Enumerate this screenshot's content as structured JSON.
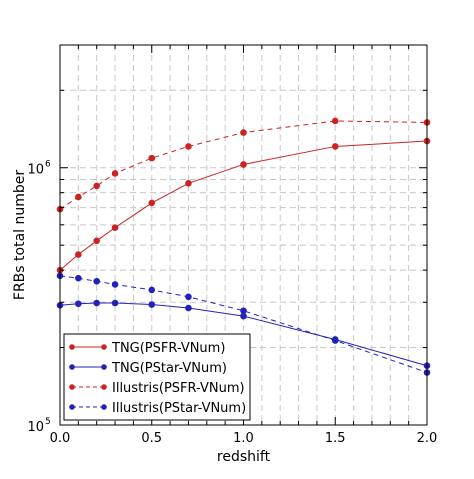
{
  "chart_data": {
    "type": "line",
    "xlabel": "redshift",
    "ylabel": "FRBs total number",
    "x_scale": "linear",
    "y_scale": "log",
    "xlim": [
      0.0,
      2.0
    ],
    "ylim": [
      100000,
      3000000
    ],
    "x_ticks": [
      0.0,
      0.5,
      1.0,
      1.5,
      2.0
    ],
    "x_tick_labels": [
      "0.0",
      "0.5",
      "1.0",
      "1.5",
      "2.0"
    ],
    "y_tick_labels": [
      {
        "value": 100000,
        "base": "10",
        "exp": "5"
      },
      {
        "value": 1000000,
        "base": "10",
        "exp": "6"
      }
    ],
    "grid": true,
    "legend_position": "lower-left",
    "x": [
      0.0,
      0.1,
      0.2,
      0.3,
      0.5,
      0.7,
      1.0,
      1.5,
      2.0
    ],
    "series": [
      {
        "name": "TNG(PSFR-VNum)",
        "color": "#cc2222",
        "line_style": "solid",
        "values": [
          400000,
          460000,
          520000,
          585000,
          730000,
          870000,
          1030000,
          1210000,
          1270000
        ]
      },
      {
        "name": "TNG(PStar-VNum)",
        "color": "#2222bb",
        "line_style": "solid",
        "values": [
          292000,
          296000,
          298000,
          298000,
          294000,
          285000,
          265000,
          215000,
          170000
        ]
      },
      {
        "name": "Illustris(PSFR-VNum)",
        "color": "#cc2222",
        "line_style": "dashed",
        "values": [
          690000,
          770000,
          850000,
          950000,
          1090000,
          1210000,
          1370000,
          1520000,
          1500000
        ]
      },
      {
        "name": "Illustris(PStar-VNum)",
        "color": "#2222bb",
        "line_style": "dashed",
        "values": [
          380000,
          372000,
          362000,
          352000,
          335000,
          315000,
          278000,
          213000,
          160000
        ]
      }
    ]
  }
}
